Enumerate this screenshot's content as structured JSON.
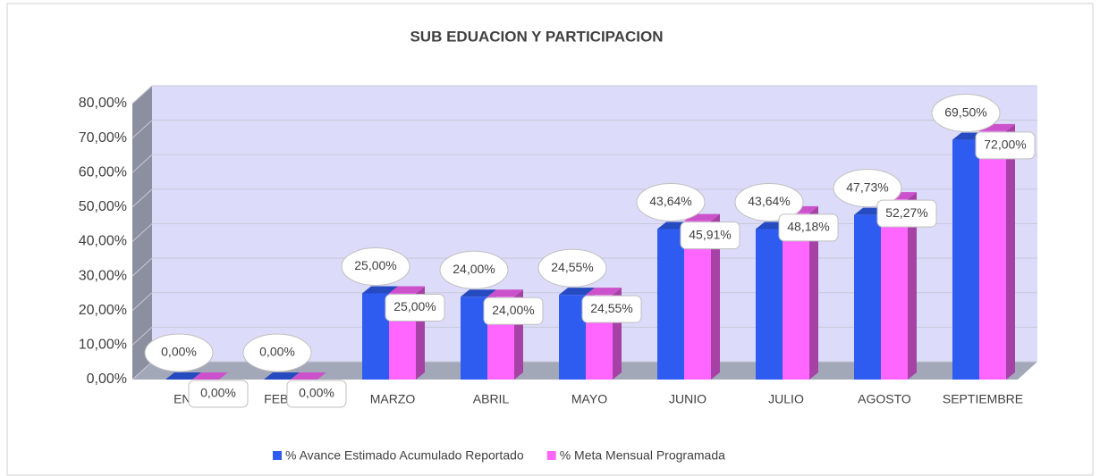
{
  "chart_data": {
    "type": "bar3d",
    "title": "SUB EDUACION Y PARTICIPACION",
    "categories": [
      "ENERO",
      "FEBRERO",
      "MARZO",
      "ABRIL",
      "MAYO",
      "JUNIO",
      "JULIO",
      "AGOSTO",
      "SEPTIEMBRE"
    ],
    "series": [
      {
        "name": "% Avance Estimado Acumulado Reportado",
        "color": "#2f5cf0",
        "values": [
          0,
          0,
          25,
          24,
          24.55,
          43.64,
          43.64,
          47.73,
          69.5
        ],
        "value_labels": [
          "0,00%",
          "0,00%",
          "25,00%",
          "24,00%",
          "24,55%",
          "43,64%",
          "43,64%",
          "47,73%",
          "69,50%"
        ]
      },
      {
        "name": "% Meta Mensual Programada",
        "color": "#ff66ff",
        "values": [
          0,
          0,
          25,
          24,
          24.55,
          45.91,
          48.18,
          52.27,
          72
        ],
        "value_labels": [
          "0,00%",
          "0,00%",
          "25,00%",
          "24,00%",
          "24,55%",
          "45,91%",
          "48,18%",
          "52,27%",
          "72,00%"
        ]
      }
    ],
    "ylim": [
      0,
      80
    ],
    "yticks": [
      {
        "value": 0,
        "label": "0,00%"
      },
      {
        "value": 10,
        "label": "10,00%"
      },
      {
        "value": 20,
        "label": "20,00%"
      },
      {
        "value": 30,
        "label": "30,00%"
      },
      {
        "value": 40,
        "label": "40,00%"
      },
      {
        "value": 50,
        "label": "50,00%"
      },
      {
        "value": 60,
        "label": "60,00%"
      },
      {
        "value": 70,
        "label": "70,00%"
      },
      {
        "value": 80,
        "label": "80,00%"
      }
    ],
    "grid": true,
    "legend": "bottom"
  }
}
